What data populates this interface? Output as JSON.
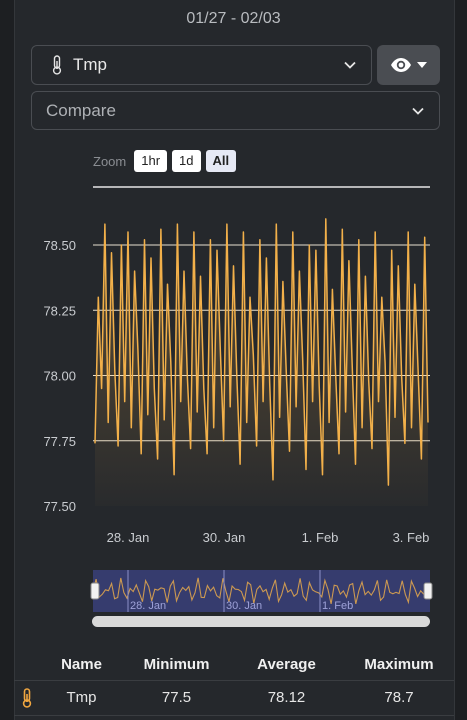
{
  "header": {
    "date_range": "01/27 - 02/03"
  },
  "sensor_select": {
    "value": "Tmp",
    "icon": "thermometer-icon"
  },
  "compare_select": {
    "placeholder": "Compare"
  },
  "visibility_button": {
    "icon": "eye-icon"
  },
  "zoom": {
    "label": "Zoom",
    "options": [
      "1hr",
      "1d",
      "All"
    ],
    "selected": "All"
  },
  "colors": {
    "line": "#f2b04a",
    "accent_icon": "#f0a640"
  },
  "chart_data": {
    "type": "line",
    "title": "",
    "xlabel": "",
    "ylabel": "",
    "ylim": [
      77.5,
      78.5
    ],
    "y_ticks": [
      "77.50",
      "77.75",
      "78.00",
      "78.25",
      "78.50"
    ],
    "x_ticks": [
      "28. Jan",
      "30. Jan",
      "1. Feb",
      "3. Feb"
    ],
    "grid": "horizontal",
    "series": [
      {
        "values": [
          77.74,
          78.3,
          77.95,
          78.58,
          77.82,
          78.47,
          78.02,
          77.73,
          78.5,
          77.9,
          78.55,
          77.8,
          78.4,
          78.1,
          77.7,
          78.52,
          77.85,
          78.45,
          77.95,
          77.68,
          78.56,
          77.83,
          78.35,
          78.05,
          77.62,
          78.58,
          77.9,
          78.4,
          78.0,
          77.72,
          78.55,
          77.86,
          78.38,
          77.95,
          77.7,
          78.52,
          77.8,
          78.48,
          78.1,
          77.75,
          78.58,
          77.88,
          78.42,
          78.0,
          77.66,
          78.55,
          77.82,
          78.3,
          78.08,
          77.73,
          78.52,
          77.9,
          78.45,
          77.97,
          77.6,
          78.58,
          77.84,
          78.36,
          78.02,
          77.71,
          78.55,
          77.88,
          78.4,
          78.06,
          77.64,
          78.5,
          77.9,
          78.48,
          77.96,
          77.62,
          78.6,
          77.82,
          78.33,
          78.0,
          77.7,
          78.56,
          77.86,
          78.44,
          78.04,
          77.66,
          78.52,
          77.8,
          78.38,
          77.98,
          77.72,
          78.55,
          77.9,
          78.3,
          78.05,
          77.58,
          78.48,
          77.84,
          78.42,
          78.0,
          77.74,
          78.55,
          77.8,
          78.35,
          78.02,
          77.68,
          78.53,
          77.82
        ]
      }
    ]
  },
  "navigator": {
    "labels": [
      "28. Jan",
      "30. Jan",
      "1. Feb"
    ]
  },
  "stats": {
    "headers": {
      "name": "Name",
      "min": "Minimum",
      "avg": "Average",
      "max": "Maximum"
    },
    "rows": [
      {
        "icon": "thermometer-icon",
        "name": "Tmp",
        "min": "77.5",
        "avg": "78.12",
        "max": "78.7"
      }
    ]
  }
}
